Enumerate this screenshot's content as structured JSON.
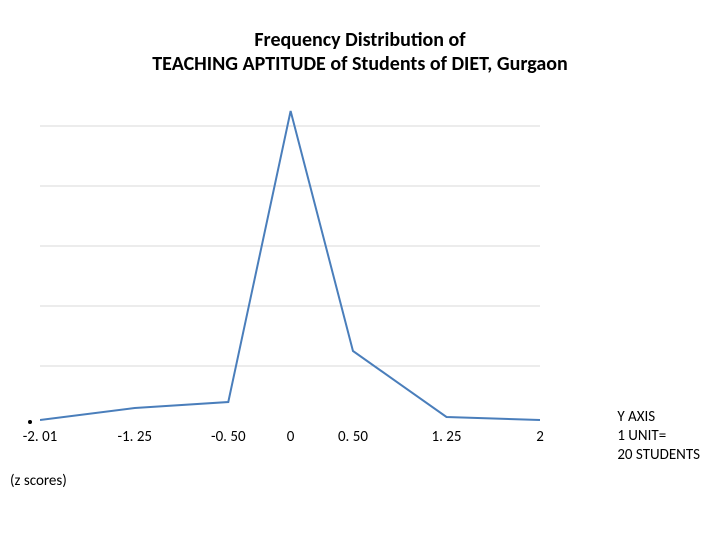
{
  "title": {
    "line1": "Frequency Distribution of",
    "line2": "TEACHING APTITUDE of Students of DIET, Gurgaon",
    "fontsize": 20,
    "color": "#000000"
  },
  "chart": {
    "type": "line",
    "background_color": "#ffffff",
    "grid_color": "#d9d9d9",
    "line_color": "#4a7ebb",
    "line_width": 2,
    "xlim": [
      -2.01,
      2.0
    ],
    "ylim": [
      0,
      110
    ],
    "grid_y_values": [
      20,
      40,
      60,
      80,
      100
    ],
    "x_values": [
      -2.01,
      -1.25,
      -0.5,
      0,
      0.5,
      1.25,
      2.0
    ],
    "y_values": [
      2,
      6,
      8,
      105,
      25,
      3,
      2
    ],
    "x_tick_labels": [
      "-2. 01",
      "-1. 25",
      "-0. 50",
      "0",
      "0. 50",
      "1. 25",
      "2"
    ],
    "x_axis_title": "(z scores)",
    "axis_note": "Y AXIS\n1 UNIT=\n20 STUDENTS",
    "label_fontsize": 15,
    "label_color": "#000000"
  }
}
